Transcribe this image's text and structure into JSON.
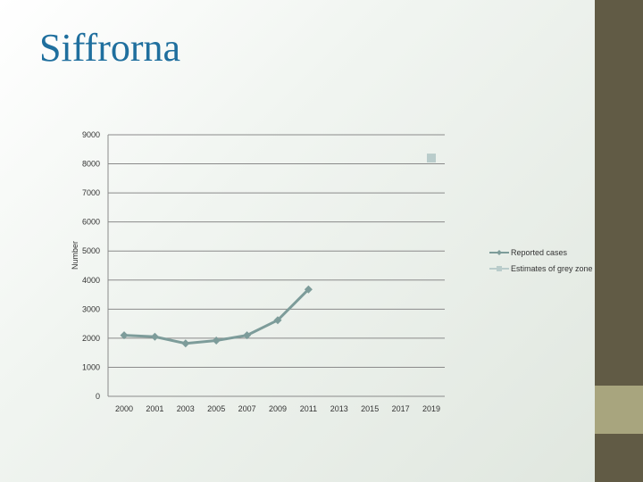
{
  "slide": {
    "title": "Siffrorna"
  },
  "colors": {
    "title": "#1f6f9e",
    "reported": "#7d9c9a",
    "grey_zone": "#b9cccb",
    "right_bar": "#615b45",
    "right_band": "#a8a57e"
  },
  "chart_data": {
    "type": "line",
    "title": "",
    "xlabel": "",
    "ylabel": "Number",
    "categories": [
      "2000",
      "2001",
      "2003",
      "2005",
      "2007",
      "2009",
      "2011",
      "2013",
      "2015",
      "2017",
      "2019"
    ],
    "ylim": [
      0,
      9000
    ],
    "yticks": [
      "0",
      "1000",
      "2000",
      "3000",
      "4000",
      "5000",
      "6000",
      "7000",
      "8000",
      "9000"
    ],
    "grid": true,
    "legend_position": "right",
    "series": [
      {
        "name": "Reported cases",
        "marker": "diamond",
        "values": [
          2100,
          2050,
          1820,
          1920,
          2100,
          2620,
          3680,
          null,
          null,
          null,
          null
        ]
      },
      {
        "name": "Estimates of grey zone",
        "marker": "square",
        "values": [
          null,
          null,
          null,
          null,
          null,
          null,
          null,
          null,
          null,
          null,
          8200
        ]
      }
    ]
  }
}
